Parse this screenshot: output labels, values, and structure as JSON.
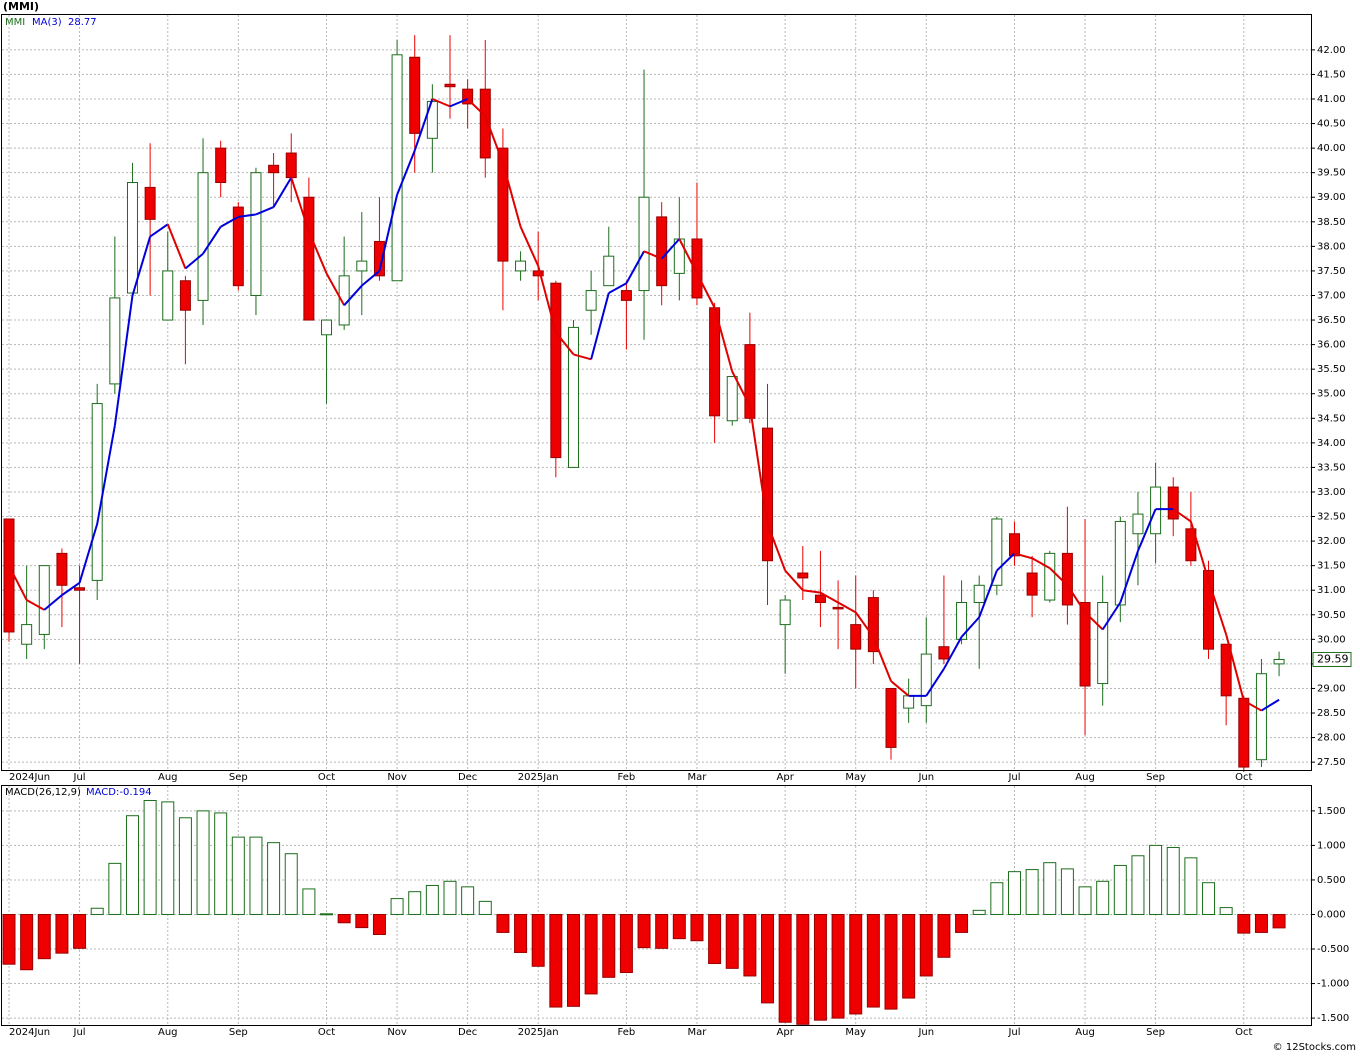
{
  "chart_data": [
    {
      "type": "candlestick",
      "title": "(MMI)",
      "symbol": "MMI",
      "categories": [
        "2024Jun",
        null,
        null,
        null,
        "Jul",
        null,
        null,
        null,
        null,
        "Aug",
        null,
        null,
        null,
        "Sep",
        null,
        null,
        null,
        null,
        "Oct",
        null,
        null,
        null,
        "Nov",
        null,
        null,
        null,
        "Dec",
        null,
        null,
        null,
        "2025Jan",
        null,
        null,
        null,
        null,
        "Feb",
        null,
        null,
        null,
        "Mar",
        null,
        null,
        null,
        null,
        "Apr",
        null,
        null,
        null,
        "May",
        null,
        null,
        null,
        "Jun",
        null,
        null,
        null,
        null,
        "Jul",
        null,
        null,
        null,
        "Aug",
        null,
        null,
        null,
        "Sep",
        null,
        null,
        null,
        null,
        "Oct",
        null,
        null
      ],
      "open": [
        32.45,
        29.9,
        30.1,
        31.75,
        31.05,
        31.2,
        35.2,
        37.05,
        39.2,
        36.5,
        37.3,
        36.9,
        40.0,
        38.8,
        37.0,
        39.65,
        39.9,
        39.0,
        36.2,
        36.4,
        37.5,
        38.1,
        37.3,
        41.85,
        40.2,
        41.3,
        41.2,
        41.2,
        40.0,
        37.5,
        37.5,
        37.25,
        33.5,
        36.7,
        37.2,
        37.1,
        37.1,
        38.6,
        37.45,
        38.15,
        36.75,
        34.45,
        36.0,
        34.3,
        30.3,
        31.35,
        30.9,
        30.65,
        30.3,
        30.85,
        29.0,
        28.6,
        28.65,
        29.85,
        30.0,
        30.75,
        31.1,
        32.15,
        31.35,
        30.8,
        31.75,
        30.75,
        29.1,
        30.7,
        32.15,
        32.15,
        33.1,
        32.25,
        31.4,
        29.9,
        28.8,
        27.55,
        29.5
      ],
      "high": [
        32.45,
        31.5,
        31.5,
        31.85,
        31.5,
        35.2,
        38.2,
        39.7,
        40.1,
        38.3,
        37.4,
        40.2,
        40.15,
        38.9,
        39.6,
        39.9,
        40.3,
        39.4,
        36.5,
        38.2,
        38.7,
        39.0,
        42.2,
        42.3,
        41.3,
        42.3,
        41.4,
        42.2,
        40.4,
        37.9,
        38.3,
        37.3,
        36.5,
        37.5,
        38.4,
        37.3,
        41.6,
        38.9,
        39.0,
        39.3,
        36.85,
        35.35,
        36.65,
        35.2,
        30.9,
        31.9,
        31.8,
        31.2,
        31.3,
        31.0,
        29.0,
        29.2,
        30.45,
        31.3,
        31.2,
        31.3,
        32.5,
        32.4,
        31.7,
        31.8,
        32.7,
        32.45,
        31.3,
        32.5,
        33.0,
        33.6,
        33.3,
        33.0,
        31.6,
        29.9,
        28.85,
        29.6,
        29.75
      ],
      "low": [
        29.95,
        29.6,
        29.8,
        30.25,
        29.5,
        30.8,
        35.0,
        37.0,
        37.0,
        36.5,
        35.6,
        36.4,
        39.0,
        37.1,
        36.6,
        38.8,
        38.9,
        36.5,
        34.8,
        36.3,
        36.6,
        37.3,
        37.3,
        39.5,
        39.5,
        40.6,
        40.4,
        39.4,
        36.7,
        37.3,
        36.9,
        33.3,
        33.5,
        36.2,
        37.2,
        35.9,
        36.1,
        36.8,
        36.9,
        36.8,
        34.0,
        34.35,
        34.4,
        30.7,
        29.3,
        30.8,
        30.25,
        29.8,
        29.0,
        29.5,
        27.55,
        28.3,
        28.3,
        29.5,
        29.9,
        29.4,
        30.9,
        31.5,
        30.45,
        30.75,
        30.3,
        28.05,
        28.65,
        30.35,
        31.1,
        31.55,
        32.1,
        31.5,
        29.6,
        28.25,
        27.3,
        27.4,
        29.25
      ],
      "close": [
        30.15,
        30.3,
        31.5,
        31.1,
        31.0,
        34.8,
        36.95,
        39.3,
        38.55,
        37.5,
        36.7,
        39.5,
        39.3,
        37.2,
        39.5,
        39.5,
        39.4,
        36.5,
        36.5,
        37.4,
        37.7,
        37.4,
        41.9,
        40.3,
        40.95,
        41.25,
        40.9,
        39.8,
        37.7,
        37.7,
        37.4,
        33.7,
        36.35,
        37.1,
        37.8,
        36.9,
        39.0,
        37.2,
        38.15,
        36.95,
        34.55,
        35.35,
        34.5,
        31.6,
        30.8,
        31.25,
        30.75,
        30.63,
        29.8,
        29.75,
        27.8,
        28.85,
        29.7,
        29.6,
        30.75,
        31.1,
        32.45,
        31.7,
        30.9,
        31.75,
        30.7,
        29.05,
        30.75,
        32.4,
        32.55,
        33.1,
        32.45,
        31.6,
        29.8,
        28.85,
        27.4,
        29.3,
        29.59
      ],
      "up_color": "#1c6e1c",
      "down_color": "#ee0000",
      "ma": {
        "name": "MA(3)",
        "up_color": "#0000dd",
        "down_color": "#e00000",
        "values": [
          31.5,
          30.8,
          30.6,
          30.9,
          31.15,
          32.35,
          34.35,
          37.0,
          38.2,
          38.45,
          37.55,
          37.85,
          38.4,
          38.6,
          38.65,
          38.8,
          39.4,
          38.3,
          37.45,
          36.8,
          37.2,
          37.5,
          39.05,
          39.95,
          41.0,
          40.85,
          41.0,
          40.65,
          39.7,
          38.4,
          37.6,
          36.25,
          35.8,
          35.7,
          37.05,
          37.25,
          37.9,
          37.75,
          38.15,
          37.45,
          36.75,
          35.45,
          34.75,
          32.35,
          31.4,
          31.0,
          30.95,
          30.75,
          30.55,
          30.05,
          29.15,
          28.85,
          28.85,
          29.4,
          30.05,
          30.45,
          31.4,
          31.75,
          31.65,
          31.45,
          31.1,
          30.55,
          30.2,
          30.75,
          31.8,
          32.65,
          32.65,
          32.4,
          31.2,
          30.1,
          28.75,
          28.55,
          28.77
        ]
      },
      "ylim": [
        27.34,
        42.71
      ],
      "yticks": [
        {
          "value": 27.5,
          "label": "27.50"
        },
        {
          "value": 28,
          "label": "28.00"
        },
        {
          "value": 28.5,
          "label": "28.50"
        },
        {
          "value": 29,
          "label": "29.00"
        },
        {
          "value": 29.5,
          "label": "29.50"
        },
        {
          "value": 30,
          "label": "30.00"
        },
        {
          "value": 30.5,
          "label": "30.50"
        },
        {
          "value": 31,
          "label": "31.00"
        },
        {
          "value": 31.5,
          "label": "31.50"
        },
        {
          "value": 32,
          "label": "32.00"
        },
        {
          "value": 32.5,
          "label": "32.50"
        },
        {
          "value": 33,
          "label": "33.00"
        },
        {
          "value": 33.5,
          "label": "33.50"
        },
        {
          "value": 34,
          "label": "34.00"
        },
        {
          "value": 34.5,
          "label": "34.50"
        },
        {
          "value": 35,
          "label": "35.00"
        },
        {
          "value": 35.5,
          "label": "35.50"
        },
        {
          "value": 36,
          "label": "36.00"
        },
        {
          "value": 36.5,
          "label": "36.50"
        },
        {
          "value": 37,
          "label": "37.00"
        },
        {
          "value": 37.5,
          "label": "37.50"
        },
        {
          "value": 38,
          "label": "38.00"
        },
        {
          "value": 38.5,
          "label": "38.50"
        },
        {
          "value": 39,
          "label": "39.00"
        },
        {
          "value": 39.5,
          "label": "39.50"
        },
        {
          "value": 40,
          "label": "40.00"
        },
        {
          "value": 40.5,
          "label": "40.50"
        },
        {
          "value": 41,
          "label": "41.00"
        },
        {
          "value": 41.5,
          "label": "41.50"
        },
        {
          "value": 42,
          "label": "42.00"
        }
      ],
      "grid": true
    },
    {
      "type": "bar",
      "title": "MACD(26,12,9)",
      "value_label": "MACD:-0.194",
      "categories": [
        "2024Jun",
        null,
        null,
        null,
        "Jul",
        null,
        null,
        null,
        null,
        "Aug",
        null,
        null,
        null,
        "Sep",
        null,
        null,
        null,
        null,
        "Oct",
        null,
        null,
        null,
        "Nov",
        null,
        null,
        null,
        "Dec",
        null,
        null,
        null,
        "2025Jan",
        null,
        null,
        null,
        null,
        "Feb",
        null,
        null,
        null,
        "Mar",
        null,
        null,
        null,
        null,
        "Apr",
        null,
        null,
        null,
        "May",
        null,
        null,
        null,
        "Jun",
        null,
        null,
        null,
        null,
        "Jul",
        null,
        null,
        null,
        "Aug",
        null,
        null,
        null,
        "Sep",
        null,
        null,
        null,
        null,
        "Oct",
        null,
        null
      ],
      "values": [
        -0.72,
        -0.8,
        -0.64,
        -0.56,
        -0.49,
        0.09,
        0.74,
        1.43,
        1.65,
        1.63,
        1.4,
        1.5,
        1.47,
        1.12,
        1.12,
        1.04,
        0.88,
        0.37,
        0.01,
        -0.12,
        -0.19,
        -0.29,
        0.23,
        0.33,
        0.42,
        0.48,
        0.4,
        0.19,
        -0.26,
        -0.55,
        -0.75,
        -1.34,
        -1.33,
        -1.15,
        -0.91,
        -0.84,
        -0.48,
        -0.49,
        -0.35,
        -0.38,
        -0.71,
        -0.78,
        -0.89,
        -1.28,
        -1.56,
        -1.59,
        -1.53,
        -1.5,
        -1.44,
        -1.34,
        -1.37,
        -1.21,
        -0.89,
        -0.62,
        -0.26,
        0.06,
        0.46,
        0.62,
        0.65,
        0.75,
        0.66,
        0.4,
        0.48,
        0.71,
        0.85,
        1.0,
        0.97,
        0.82,
        0.46,
        0.1,
        -0.27,
        -0.26,
        -0.194
      ],
      "pos_color": "#1c6e1c",
      "neg_color": "#ee0000",
      "ylim": [
        -1.6,
        1.86
      ],
      "yticks": [
        {
          "value": -1.5,
          "label": "-1.500"
        },
        {
          "value": -1,
          "label": "-1.000"
        },
        {
          "value": -0.5,
          "label": "-0.500"
        },
        {
          "value": 0,
          "label": "0.000"
        },
        {
          "value": 0.5,
          "label": "0.500"
        },
        {
          "value": 1,
          "label": "1.000"
        },
        {
          "value": 1.5,
          "label": "1.500"
        }
      ],
      "grid": true
    }
  ],
  "source": "© 12Stocks.com"
}
